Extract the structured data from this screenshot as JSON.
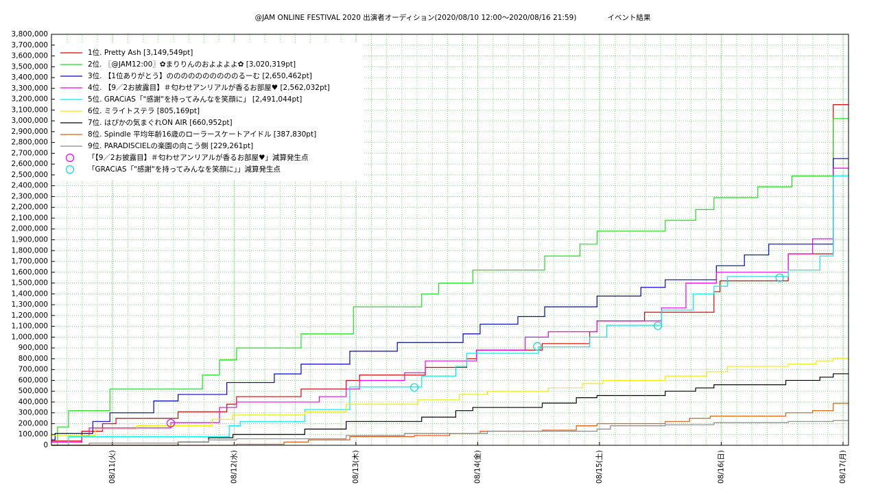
{
  "chart_data": {
    "type": "line",
    "title": "@JAM ONLINE FESTIVAL 2020 出演者オーディション(2020/08/10 12:00～2020/08/16 21:59)",
    "subtitle": "イベント結果",
    "xlim": [
      -0.5,
      6.045
    ],
    "xticks": [
      {
        "value": 0,
        "label": "08/11(火)"
      },
      {
        "value": 1,
        "label": "08/12(水)"
      },
      {
        "value": 2,
        "label": "08/13(木)"
      },
      {
        "value": 3,
        "label": "08/14(金)"
      },
      {
        "value": 4,
        "label": "08/15(土)"
      },
      {
        "value": 5,
        "label": "08/16(日)"
      },
      {
        "value": 6,
        "label": "08/17(月)"
      }
    ],
    "ylim": [
      0,
      3800000
    ],
    "yticks": [
      0,
      {
        "value": 100000,
        "label": "100,000"
      },
      {
        "value": 200000,
        "label": "200,000"
      },
      {
        "value": 300000,
        "label": "300,000"
      },
      {
        "value": 400000,
        "label": "400,000"
      },
      {
        "value": 500000,
        "label": "500,000"
      },
      {
        "value": 600000,
        "label": "600,000"
      },
      {
        "value": 700000,
        "label": "700,000"
      },
      {
        "value": 800000,
        "label": "800,000"
      },
      {
        "value": 900000,
        "label": "900,000"
      },
      {
        "value": 1000000,
        "label": "1,000,000"
      },
      {
        "value": 1100000,
        "label": "1,100,000"
      },
      {
        "value": 1200000,
        "label": "1,200,000"
      },
      {
        "value": 1300000,
        "label": "1,300,000"
      },
      {
        "value": 1400000,
        "label": "1,400,000"
      },
      {
        "value": 1500000,
        "label": "1,500,000"
      },
      {
        "value": 1600000,
        "label": "1,600,000"
      },
      {
        "value": 1700000,
        "label": "1,700,000"
      },
      {
        "value": 1800000,
        "label": "1,800,000"
      },
      {
        "value": 1900000,
        "label": "1,900,000"
      },
      {
        "value": 2000000,
        "label": "2,000,000"
      },
      {
        "value": 2100000,
        "label": "2,100,000"
      },
      {
        "value": 2200000,
        "label": "2,200,000"
      },
      {
        "value": 2300000,
        "label": "2,300,000"
      },
      {
        "value": 2400000,
        "label": "2,400,000"
      },
      {
        "value": 2500000,
        "label": "2,500,000"
      },
      {
        "value": 2600000,
        "label": "2,600,000"
      },
      {
        "value": 2700000,
        "label": "2,700,000"
      },
      {
        "value": 2800000,
        "label": "2,800,000"
      },
      {
        "value": 2900000,
        "label": "2,900,000"
      },
      {
        "value": 3000000,
        "label": "3,000,000"
      },
      {
        "value": 3100000,
        "label": "3,100,000"
      },
      {
        "value": 3200000,
        "label": "3,200,000"
      },
      {
        "value": 3300000,
        "label": "3,300,000"
      },
      {
        "value": 3400000,
        "label": "3,400,000"
      },
      {
        "value": 3500000,
        "label": "3,500,000"
      },
      {
        "value": 3600000,
        "label": "3,600,000"
      },
      {
        "value": 3700000,
        "label": "3,700,000"
      },
      {
        "value": 3800000,
        "label": "3,800,000"
      }
    ],
    "grid": true,
    "legend": "upper left",
    "series": [
      {
        "name": "1位. Pretty Ash [3,149,549pt]",
        "color": "#dd0000",
        "x": [
          -0.5,
          -0.25,
          -0.08,
          0.03,
          0.54,
          0.94,
          1.02,
          1.55,
          1.92,
          2.03,
          2.57,
          2.91,
          2.99,
          3.53,
          3.92,
          3.98,
          4.37,
          4.94,
          4.99,
          5.55,
          5.92,
          6.045
        ],
        "values": [
          40000,
          130000,
          200000,
          250000,
          310000,
          380000,
          450000,
          520000,
          600000,
          650000,
          720000,
          800000,
          880000,
          940000,
          1050000,
          1150000,
          1230000,
          1420000,
          1520000,
          1770000,
          3149549,
          3149549
        ]
      },
      {
        "name": "2位. 〖@JAM12:00〗✿まりりんのおよよよよ✿ [3,020,319pt]",
        "color": "#22dd22",
        "x": [
          -0.5,
          -0.45,
          -0.36,
          -0.02,
          0.74,
          0.88,
          1.02,
          1.55,
          1.98,
          2.54,
          2.68,
          2.96,
          3.55,
          3.84,
          3.98,
          4.54,
          4.79,
          4.94,
          5.3,
          5.58,
          5.92,
          6.045
        ],
        "values": [
          0,
          170000,
          320000,
          520000,
          650000,
          790000,
          900000,
          1030000,
          1280000,
          1400000,
          1500000,
          1620000,
          1750000,
          1860000,
          1980000,
          2080000,
          2180000,
          2290000,
          2390000,
          2490000,
          3020319,
          3020319
        ]
      },
      {
        "name": "3位. 【1位ありがとう】ののののののののののるーむ [2,650,462pt]",
        "color": "#0000cc",
        "x": [
          -0.5,
          -0.47,
          -0.16,
          -0.02,
          0.34,
          0.54,
          0.94,
          1.33,
          1.55,
          1.95,
          2.34,
          2.88,
          3.02,
          3.33,
          3.55,
          3.98,
          4.34,
          4.54,
          4.96,
          5.19,
          5.39,
          5.92,
          6.045
        ],
        "values": [
          50000,
          110000,
          220000,
          300000,
          410000,
          470000,
          580000,
          660000,
          750000,
          870000,
          950000,
          1030000,
          1120000,
          1190000,
          1280000,
          1380000,
          1460000,
          1530000,
          1660000,
          1760000,
          1860000,
          2650462,
          2650462
        ]
      },
      {
        "name": "4位. 【9／2お披露目】＃匂わせアンリアルが香るお部屋♥ [2,562,032pt]",
        "color": "#ee00ee",
        "x": [
          -0.5,
          -0.25,
          -0.19,
          0.48,
          0.88,
          1.02,
          1.7,
          1.92,
          2.03,
          2.4,
          2.57,
          2.99,
          3.39,
          3.58,
          3.98,
          4.51,
          4.71,
          4.96,
          5.55,
          5.75,
          5.92,
          6.045
        ],
        "values": [
          30000,
          90000,
          160000,
          210000,
          350000,
          400000,
          450000,
          520000,
          600000,
          670000,
          780000,
          880000,
          1000000,
          1050000,
          1150000,
          1270000,
          1500000,
          1600000,
          1770000,
          1910000,
          2562032,
          2562032
        ]
      },
      {
        "name": "5位. GRACiAS「\"感謝\"を持ってみんなを笑顔に」 [2,491,044pt]",
        "color": "#00eeee",
        "x": [
          -0.5,
          -0.36,
          0.96,
          1.05,
          1.58,
          1.95,
          2.54,
          2.82,
          2.91,
          3.5,
          3.92,
          4.06,
          4.51,
          4.77,
          4.94,
          5.05,
          5.55,
          5.81,
          5.92,
          6.045
        ],
        "values": [
          0,
          80000,
          180000,
          220000,
          330000,
          540000,
          640000,
          730000,
          850000,
          910000,
          1000000,
          1110000,
          1250000,
          1400000,
          1470000,
          1560000,
          1620000,
          1750000,
          2491044,
          2491044
        ]
      },
      {
        "name": "6位. ミライトステラ [805,169pt]",
        "color": "#eeee00",
        "x": [
          -0.5,
          -0.14,
          0.2,
          0.82,
          0.99,
          1.58,
          1.92,
          2.51,
          2.85,
          3.08,
          3.58,
          3.86,
          4.03,
          4.54,
          4.88,
          5.05,
          5.55,
          5.78,
          5.92,
          6.045
        ],
        "values": [
          90000,
          150000,
          180000,
          240000,
          280000,
          310000,
          380000,
          420000,
          470000,
          500000,
          530000,
          570000,
          600000,
          640000,
          680000,
          730000,
          750000,
          780000,
          805169,
          805169
        ]
      },
      {
        "name": "7位. はぴかの気まぐれON AIR [660,952pt]",
        "color": "#000000",
        "x": [
          -0.5,
          0.54,
          0.79,
          0.99,
          1.58,
          1.92,
          2.54,
          2.82,
          2.96,
          3.53,
          3.81,
          3.98,
          4.54,
          4.79,
          4.94,
          5.53,
          5.81,
          5.92,
          6.045
        ],
        "values": [
          0,
          30000,
          70000,
          100000,
          150000,
          220000,
          260000,
          320000,
          350000,
          390000,
          440000,
          460000,
          500000,
          530000,
          560000,
          600000,
          630000,
          660952,
          660952
        ]
      },
      {
        "name": "8位. Spindle 平均年齢16歳のローラースケートアイドル [387,830pt]",
        "color": "#e05a10",
        "x": [
          -0.5,
          1.02,
          1.41,
          1.61,
          1.95,
          2.48,
          2.77,
          3.02,
          3.53,
          3.81,
          3.98,
          4.54,
          4.74,
          4.91,
          5.53,
          5.75,
          5.92,
          6.045
        ],
        "values": [
          0,
          10000,
          30000,
          50000,
          80000,
          90000,
          110000,
          130000,
          140000,
          180000,
          200000,
          220000,
          250000,
          270000,
          300000,
          320000,
          387830,
          387830
        ]
      },
      {
        "name": "9位. PARADISCIELの楽園の向こう側 [229,261pt]",
        "color": "#888888",
        "x": [
          -0.5,
          -0.19,
          0.54,
          0.79,
          1.02,
          1.92,
          2.4,
          3.08,
          3.98,
          4.09,
          4.54,
          4.94,
          5.55,
          5.92,
          6.045
        ],
        "values": [
          0,
          20000,
          30000,
          50000,
          60000,
          90000,
          110000,
          130000,
          150000,
          180000,
          190000,
          210000,
          220000,
          229261,
          229261
        ]
      }
    ],
    "markers": [
      {
        "name": "「【9／2お披露目】＃匂わせアンリアルが香るお部屋♥」減算発生点",
        "color": "#ee00ee",
        "x": [
          0.48
        ],
        "values": [
          205000
        ]
      },
      {
        "name": "「GRACiAS「\"感謝\"を持ってみんなを笑顔に」」減算発生点",
        "color": "#00dddd",
        "x": [
          2.48,
          3.49,
          4.48,
          5.48
        ],
        "values": [
          535000,
          915000,
          1105000,
          1550000
        ]
      }
    ]
  }
}
